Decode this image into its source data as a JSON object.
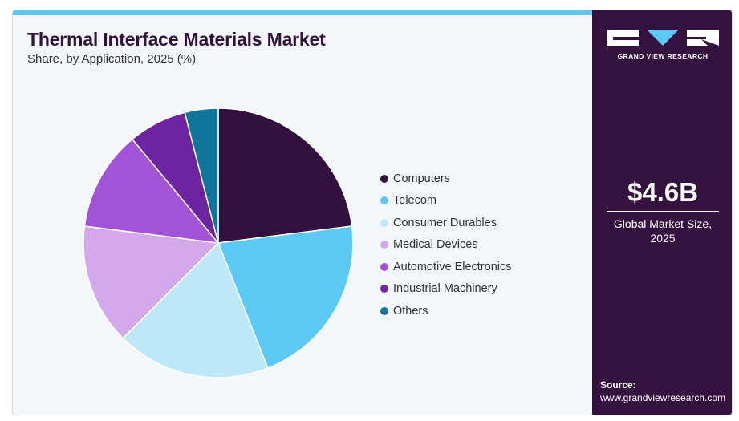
{
  "header": {
    "title": "Thermal Interface Materials Market",
    "subtitle": "Share, by Application, 2025 (%)"
  },
  "brand": {
    "name": "GRAND VIEW RESEARCH",
    "logo_icon": "gvr-logo-icon"
  },
  "summary": {
    "value": "$4.6B",
    "label": "Global Market Size, 2025"
  },
  "source": {
    "label": "Source:",
    "url": "www.grandviewresearch.com"
  },
  "colors": {
    "accent_bar": "#5bc9f4",
    "panel": "#34113f",
    "title": "#33113f"
  },
  "chart_data": {
    "type": "pie",
    "title": "Thermal Interface Materials Market",
    "subtitle": "Share, by Application, 2025 (%)",
    "legend_position": "right",
    "categories": [
      "Computers",
      "Telecom",
      "Consumer Durables",
      "Medical Devices",
      "Automotive Electronics",
      "Industrial Machinery",
      "Others"
    ],
    "values": [
      23,
      21,
      18.5,
      14.5,
      12,
      7,
      4
    ],
    "colors": [
      "#33113f",
      "#5bc9f4",
      "#bde8f8",
      "#d3a8ec",
      "#a353d8",
      "#6e24a0",
      "#10759a"
    ],
    "start_angle_deg": 0,
    "direction": "clockwise"
  }
}
